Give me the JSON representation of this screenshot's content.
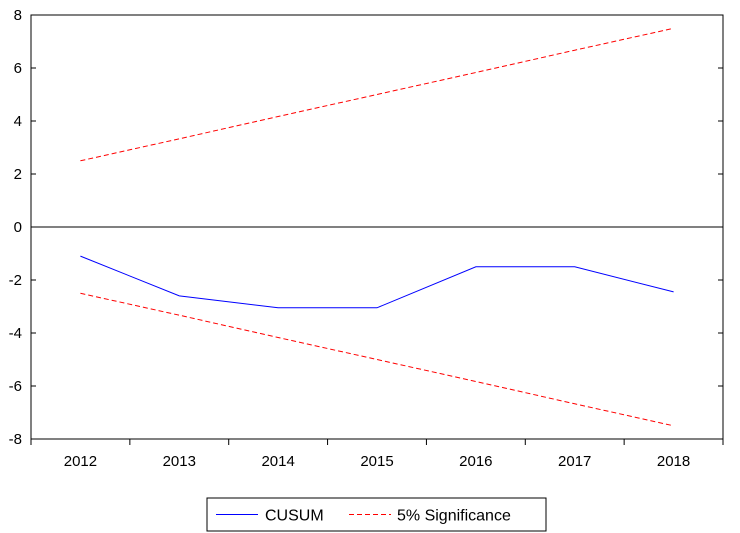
{
  "chart_data": {
    "type": "line",
    "x": [
      "2012",
      "2013",
      "2014",
      "2015",
      "2016",
      "2017",
      "2018"
    ],
    "ylim": [
      -8,
      8
    ],
    "yticks": [
      "8",
      "6",
      "4",
      "2",
      "0",
      "-2",
      "-4",
      "-6",
      "-8"
    ],
    "grid": false,
    "zero_line": true,
    "legend_position": "bottom-center",
    "series": [
      {
        "name": "CUSUM",
        "color": "#0000ff",
        "style": "solid",
        "values": [
          -1.1,
          -2.6,
          -3.05,
          -3.05,
          -1.5,
          -1.5,
          -2.45
        ]
      },
      {
        "name": "5% Significance",
        "color": "#ff0000",
        "style": "dashed",
        "values": [
          2.5,
          3.33,
          4.17,
          5.0,
          5.83,
          6.67,
          7.5
        ]
      },
      {
        "name": "",
        "color": "#ff0000",
        "style": "dashed",
        "values": [
          -2.5,
          -3.33,
          -4.17,
          -5.0,
          -5.83,
          -6.67,
          -7.5
        ]
      }
    ],
    "legend": [
      {
        "label": "CUSUM",
        "color": "#0000ff",
        "style": "solid"
      },
      {
        "label": "5% Significance",
        "color": "#ff0000",
        "style": "dashed"
      }
    ]
  }
}
